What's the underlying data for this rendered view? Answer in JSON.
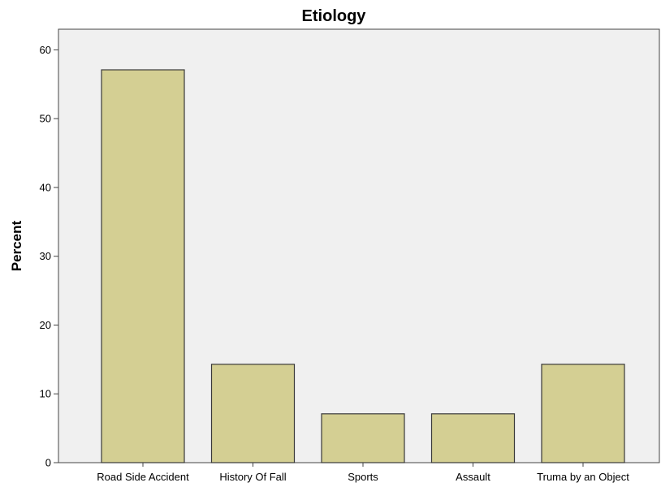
{
  "chart_data": {
    "type": "bar",
    "title": "Etiology",
    "xlabel": "",
    "ylabel": "Percent",
    "categories": [
      "Road Side Accident",
      "History Of Fall",
      "Sports",
      "Assault",
      "Truma by an Object"
    ],
    "values": [
      57.1,
      14.3,
      7.1,
      7.1,
      14.3
    ],
    "ylim": [
      0,
      63
    ],
    "yticks": [
      0,
      10,
      20,
      30,
      40,
      50,
      60
    ],
    "grid": false,
    "legend": "none",
    "colors": {
      "bar_fill": "#d4cf93",
      "bar_stroke": "#3a3a3a",
      "plot_background": "#f0f0f0",
      "axis": "#444444"
    }
  }
}
